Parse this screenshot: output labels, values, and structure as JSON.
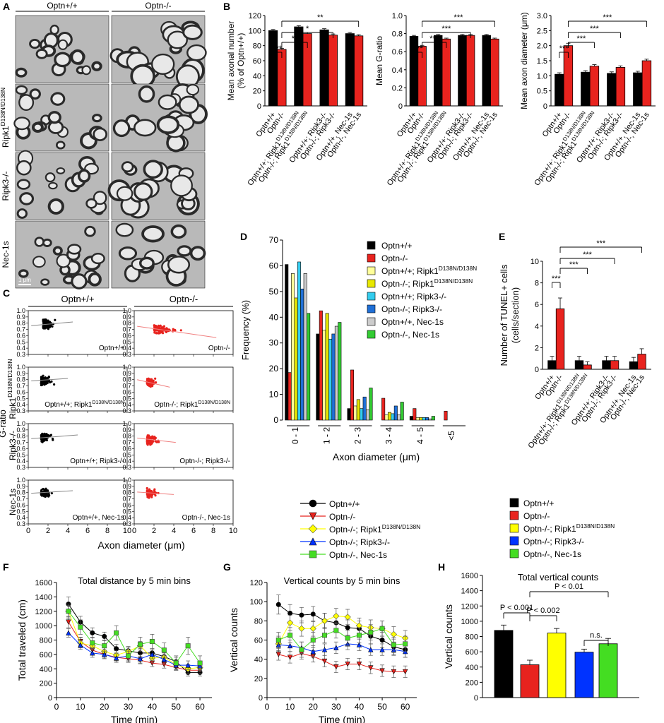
{
  "panel_labels": {
    "A": "A",
    "B": "B",
    "C": "C",
    "D": "D",
    "E": "E",
    "F": "F",
    "G": "G",
    "H": "H"
  },
  "panel_a": {
    "col_headers": [
      "Optn+/+",
      "Optn-/-"
    ],
    "row_labels": [
      {
        "main": "",
        "sup": ""
      },
      {
        "main": "Ripk1",
        "sup": "D138N/D138N"
      },
      {
        "main": "Ripk3-/-",
        "sup": ""
      },
      {
        "main": "Nec-1s",
        "sup": ""
      }
    ],
    "scale_bar": "1 μm"
  },
  "colors": {
    "Optn+/+": "#000000",
    "Optn-/-": "#e8231e",
    "Ripk1_wt": "#ffff99",
    "Ripk1_ko": "#e8e800",
    "Ripk3_wt": "#33ccee",
    "Ripk3_ko": "#1f6fd6",
    "Nec1s_wt": "#cccccc",
    "Nec1s_ko": "#33cc33",
    "yellow": "#ffff00",
    "blue": "#0033ff",
    "green": "#44dd22"
  },
  "stats": {
    "s1": "*",
    "s2": "**",
    "s3": "***",
    "ns": "n.s."
  },
  "chart_data": [
    {
      "id": "B1",
      "type": "bar",
      "ylabel": "Mean axonal number",
      "ylabel2": "(% of Optn+/+)",
      "ylim": [
        0,
        120
      ],
      "yticks": [
        "0",
        "20",
        "40",
        "60",
        "80",
        "100",
        "120"
      ],
      "categories": [
        {
          "label": "Optn+/+",
          "sup": ""
        },
        {
          "label": "Optn-/-",
          "sup": ""
        },
        {
          "label": "Optn+/+; Ripk1",
          "sup": "D138N/D138N"
        },
        {
          "label": "Optn-/-; Ripk1",
          "sup": "D138N/D138N"
        },
        {
          "label": "Optn+/+; Ripk3-/-",
          "sup": ""
        },
        {
          "label": "Optn-/-; Ripk3-/-",
          "sup": ""
        },
        {
          "label": "Optn+/+, Nec-1s",
          "sup": ""
        },
        {
          "label": "Optn-/-, Nec-1s",
          "sup": ""
        }
      ],
      "values": [
        100,
        75,
        105,
        96,
        101,
        94,
        96,
        93
      ],
      "errors": [
        1.5,
        1.5,
        1.5,
        1.5,
        1.5,
        1.5,
        1.5,
        1.5
      ],
      "significance": [
        "***",
        "**",
        "*",
        "**"
      ]
    },
    {
      "id": "B2",
      "type": "bar",
      "ylabel": "Mean G-ratio",
      "ylim": [
        0,
        1.0
      ],
      "yticks": [
        "0",
        "0.2",
        "0.4",
        "0.6",
        "0.8",
        "1.0"
      ],
      "values": [
        0.77,
        0.66,
        0.78,
        0.74,
        0.78,
        0.78,
        0.78,
        0.74
      ],
      "errors": [
        0.01,
        0.01,
        0.01,
        0.01,
        0.01,
        0.01,
        0.01,
        0.01
      ],
      "significance": [
        "***",
        "***",
        "***",
        "***"
      ]
    },
    {
      "id": "B3",
      "type": "bar",
      "ylabel": "Mean axon diameter (μm)",
      "ylim": [
        0,
        3.0
      ],
      "yticks": [
        "0",
        "0.5",
        "1.0",
        "1.5",
        "2.0",
        "2.5",
        "3.0"
      ],
      "values": [
        1.05,
        2.0,
        1.12,
        1.32,
        1.08,
        1.28,
        1.1,
        1.5
      ],
      "errors": [
        0.05,
        0.08,
        0.05,
        0.05,
        0.05,
        0.05,
        0.05,
        0.05
      ],
      "significance": [
        "***",
        "***",
        "***",
        "***"
      ]
    },
    {
      "id": "C",
      "type": "scatter",
      "ylabel": "G-ratio",
      "xlabel": "Axon diameter (μm)",
      "xlim": [
        0,
        10
      ],
      "ylim": [
        0.3,
        1.0
      ],
      "xticks": [
        "0",
        "2",
        "4",
        "6",
        "8",
        "10"
      ],
      "yticks": [
        "0.3",
        "0.4",
        "0.5",
        "0.6",
        "0.7",
        "0.8",
        "0.9",
        "1.0"
      ],
      "column_titles": [
        "Optn+/+",
        "Optn-/-"
      ],
      "row_labels": [
        {
          "main": "",
          "sup": ""
        },
        {
          "main": "Ripk1",
          "sup": "D138N/D138N"
        },
        {
          "main": "Ripk3-/-",
          "sup": ""
        },
        {
          "main": "Nec-1s",
          "sup": ""
        }
      ],
      "panels": [
        {
          "label": "Optn+/+",
          "sup": "",
          "color": "#000000",
          "center": [
            1.5,
            0.78
          ],
          "trend": [
            [
              0.3,
              0.76
            ],
            [
              4.5,
              0.82
            ]
          ]
        },
        {
          "label": "Optn-/-",
          "sup": "",
          "color": "#e8231e",
          "center": [
            2.0,
            0.7
          ],
          "trend": [
            [
              0.3,
              0.75
            ],
            [
              8.3,
              0.57
            ]
          ]
        },
        {
          "label": "Optn+/+; Ripk1",
          "sup": "D138N/D138N",
          "color": "#000000",
          "center": [
            1.3,
            0.78
          ],
          "trend": [
            [
              0.3,
              0.78
            ],
            [
              4.0,
              0.82
            ]
          ]
        },
        {
          "label": "Optn-/-; Ripk1",
          "sup": "D138N/D138N",
          "color": "#e8231e",
          "center": [
            1.3,
            0.76
          ],
          "trend": [
            [
              0.3,
              0.8
            ],
            [
              3.6,
              0.68
            ]
          ]
        },
        {
          "label": "Optn+/+; Ripk3-/-",
          "sup": "",
          "color": "#000000",
          "center": [
            1.3,
            0.78
          ],
          "trend": [
            [
              0.3,
              0.76
            ],
            [
              5.0,
              0.82
            ]
          ]
        },
        {
          "label": "Optn-/-; Ripk3-/-",
          "sup": "",
          "color": "#e8231e",
          "center": [
            1.3,
            0.74
          ],
          "trend": [
            [
              0.3,
              0.77
            ],
            [
              4.2,
              0.7
            ]
          ]
        },
        {
          "label": "Optn+/+, Nec-1s",
          "sup": "",
          "color": "#000000",
          "center": [
            1.3,
            0.79
          ],
          "trend": [
            [
              0.3,
              0.79
            ],
            [
              4.5,
              0.83
            ]
          ]
        },
        {
          "label": "Optn-/-, Nec-1s",
          "sup": "",
          "color": "#e8231e",
          "center": [
            1.3,
            0.79
          ],
          "trend": [
            [
              0.3,
              0.81
            ],
            [
              4.0,
              0.77
            ]
          ]
        }
      ]
    },
    {
      "id": "D",
      "type": "bar",
      "ylabel": "Frequency (%)",
      "xlabel": "Axon diameter (μm)",
      "ylim": [
        0,
        70
      ],
      "yticks": [
        "0",
        "10",
        "20",
        "30",
        "40",
        "50",
        "60",
        "70"
      ],
      "categories": [
        "0 - 1",
        "1 - 2",
        "2 - 3",
        "3 - 4",
        "4 - 5",
        "<5"
      ],
      "series": [
        {
          "name": "Optn+/+",
          "sup": "",
          "color": "#000000",
          "values": [
            60.5,
            33.5,
            4.5,
            0,
            1.5,
            0
          ]
        },
        {
          "name": "Optn-/-",
          "sup": "",
          "color": "#e8231e",
          "values": [
            18.5,
            42.5,
            19.5,
            8.5,
            4.5,
            3.5
          ]
        },
        {
          "name": "Optn+/+; Ripk1",
          "sup": "D138N/D138N",
          "color": "#ffff99",
          "values": [
            57,
            35,
            5.5,
            2,
            1,
            0
          ]
        },
        {
          "name": "Optn-/-; Ripk1",
          "sup": "D138N/D138N",
          "color": "#e8e800",
          "values": [
            47.5,
            41.5,
            8,
            3,
            1,
            0
          ]
        },
        {
          "name": "Optn+/+; Ripk3-/-",
          "sup": "",
          "color": "#33ccee",
          "values": [
            61.5,
            31.5,
            4.5,
            2.5,
            1,
            0
          ]
        },
        {
          "name": "Optn-/-; Ripk3-/-",
          "sup": "",
          "color": "#1f6fd6",
          "values": [
            51,
            33.5,
            9,
            5.5,
            1,
            0
          ]
        },
        {
          "name": "Optn+/+, Nec-1s",
          "sup": "",
          "color": "#cccccc",
          "values": [
            57,
            36.5,
            4,
            2,
            0.5,
            0
          ]
        },
        {
          "name": "Optn-/-, Nec-1s",
          "sup": "",
          "color": "#33cc33",
          "values": [
            41.5,
            38,
            12.5,
            7,
            1.5,
            0
          ]
        }
      ]
    },
    {
      "id": "E",
      "type": "bar",
      "ylabel": "Number of TUNEL+ cells",
      "ylabel2": "(cells/section)",
      "ylim": [
        0,
        10
      ],
      "yticks": [
        "0",
        "2",
        "4",
        "6",
        "8",
        "10"
      ],
      "values": [
        0.8,
        5.6,
        0.8,
        0.4,
        0.8,
        0.8,
        0.7,
        1.4
      ],
      "errors": [
        0.4,
        1.0,
        0.4,
        0.3,
        0.4,
        0.4,
        0.4,
        0.5
      ],
      "significance": [
        "***",
        "***",
        "***",
        "***"
      ]
    },
    {
      "id": "F",
      "type": "line",
      "title": "Total distance by 5 min bins",
      "ylabel": "Total traveled (cm)",
      "xlabel": "Time (min)",
      "xlim": [
        0,
        65
      ],
      "ylim": [
        0,
        1600
      ],
      "xticks": [
        "0",
        "10",
        "20",
        "30",
        "40",
        "50",
        "60"
      ],
      "yticks": [
        "0",
        "200",
        "400",
        "600",
        "800",
        "1000",
        "1200",
        "1400",
        "1600"
      ],
      "x": [
        5,
        10,
        15,
        20,
        25,
        30,
        35,
        40,
        45,
        50,
        55,
        60
      ],
      "series": [
        {
          "name": "Optn+/+",
          "values": [
            1300,
            1050,
            900,
            850,
            680,
            650,
            620,
            620,
            570,
            500,
            350,
            350
          ],
          "err": [
            100,
            80,
            70,
            60,
            60,
            60,
            60,
            60,
            60,
            60,
            50,
            50
          ]
        },
        {
          "name": "Optn-/-",
          "values": [
            1050,
            780,
            660,
            600,
            560,
            540,
            520,
            480,
            460,
            420,
            380,
            380
          ],
          "err": [
            80,
            60,
            50,
            50,
            50,
            50,
            50,
            50,
            50,
            40,
            40,
            40
          ]
        },
        {
          "name": "Optn-/-; Ripk1",
          "sup": "D138N/D138N",
          "values": [
            1200,
            760,
            720,
            640,
            590,
            640,
            720,
            550,
            560,
            460,
            400,
            420
          ],
          "err": [
            80,
            70,
            60,
            60,
            60,
            60,
            60,
            60,
            60,
            60,
            60,
            60
          ]
        },
        {
          "name": "Optn-/-; Ripk3-/-",
          "values": [
            900,
            730,
            620,
            600,
            550,
            580,
            540,
            600,
            530,
            450,
            450,
            440
          ],
          "err": [
            60,
            60,
            60,
            60,
            60,
            60,
            60,
            60,
            60,
            60,
            60,
            60
          ]
        },
        {
          "name": "Optn-/-, Nec-1s",
          "values": [
            1200,
            980,
            760,
            720,
            900,
            580,
            740,
            780,
            660,
            480,
            720,
            480
          ],
          "err": [
            100,
            100,
            80,
            80,
            100,
            80,
            100,
            100,
            100,
            100,
            120,
            100
          ]
        }
      ]
    },
    {
      "id": "G",
      "type": "line",
      "title": "Vertical counts by 5 min bins",
      "ylabel": "Vertical counts",
      "xlabel": "Time (min)",
      "xlim": [
        0,
        65
      ],
      "ylim": [
        0,
        120
      ],
      "xticks": [
        "0",
        "10",
        "20",
        "30",
        "40",
        "50",
        "60"
      ],
      "yticks": [
        "0",
        "20",
        "40",
        "60",
        "80",
        "100",
        "120"
      ],
      "x": [
        5,
        10,
        15,
        20,
        25,
        30,
        35,
        40,
        45,
        50,
        55,
        60
      ],
      "series": [
        {
          "name": "Optn+/+",
          "values": [
            97,
            88,
            86,
            87,
            80,
            78,
            73,
            72,
            64,
            60,
            53,
            50
          ],
          "err": [
            10,
            9,
            8,
            8,
            8,
            8,
            8,
            8,
            8,
            8,
            8,
            8
          ]
        },
        {
          "name": "Optn-/-",
          "values": [
            45,
            42,
            46,
            43,
            38,
            32,
            35,
            35,
            31,
            28,
            27,
            27
          ],
          "err": [
            6,
            6,
            6,
            6,
            6,
            6,
            6,
            6,
            6,
            6,
            6,
            6
          ]
        },
        {
          "name": "Optn-/-; Ripk1",
          "sup": "D138N/D138N",
          "values": [
            56,
            78,
            72,
            72,
            80,
            85,
            84,
            75,
            73,
            72,
            66,
            62
          ],
          "err": [
            8,
            8,
            8,
            8,
            8,
            8,
            8,
            8,
            8,
            8,
            8,
            8
          ]
        },
        {
          "name": "Optn-/-; Ripk3-/-",
          "values": [
            55,
            54,
            52,
            48,
            50,
            52,
            56,
            55,
            50,
            50,
            50,
            48
          ],
          "err": [
            6,
            6,
            6,
            6,
            6,
            6,
            6,
            6,
            6,
            6,
            6,
            6
          ]
        },
        {
          "name": "Optn-/-, Nec-1s",
          "values": [
            60,
            65,
            50,
            60,
            65,
            70,
            62,
            65,
            68,
            72,
            55,
            56
          ],
          "err": [
            8,
            8,
            8,
            8,
            8,
            8,
            8,
            8,
            8,
            8,
            8,
            8
          ]
        }
      ]
    },
    {
      "id": "H",
      "type": "bar",
      "title": "Total vertical counts",
      "ylabel": "Vertical counts",
      "ylim": [
        0,
        1600
      ],
      "yticks": [
        "0",
        "200",
        "400",
        "600",
        "800",
        "1000",
        "1200",
        "1400",
        "1600"
      ],
      "values": [
        880,
        430,
        845,
        595,
        705
      ],
      "errors": [
        70,
        60,
        60,
        40,
        70
      ],
      "annotations": [
        "P < 0.001",
        "P < 0.002",
        "P < 0.01",
        "n.s."
      ]
    }
  ],
  "legend_fg": [
    {
      "name": "Optn+/+",
      "sup": ""
    },
    {
      "name": "Optn-/-",
      "sup": ""
    },
    {
      "name": "Optn-/-; Ripk1",
      "sup": "D138N/D138N"
    },
    {
      "name": "Optn-/-; Ripk3-/-",
      "sup": ""
    },
    {
      "name": "Optn-/-, Nec-1s",
      "sup": ""
    }
  ],
  "legend_h": [
    {
      "name": "Optn+/+",
      "sup": ""
    },
    {
      "name": "Optn-/-",
      "sup": ""
    },
    {
      "name": "Optn-/-; Ripk1",
      "sup": "D138N/D138N"
    },
    {
      "name": "Optn-/-; Ripk3-/-",
      "sup": ""
    },
    {
      "name": "Optn-/-, Nec-1s",
      "sup": ""
    }
  ]
}
